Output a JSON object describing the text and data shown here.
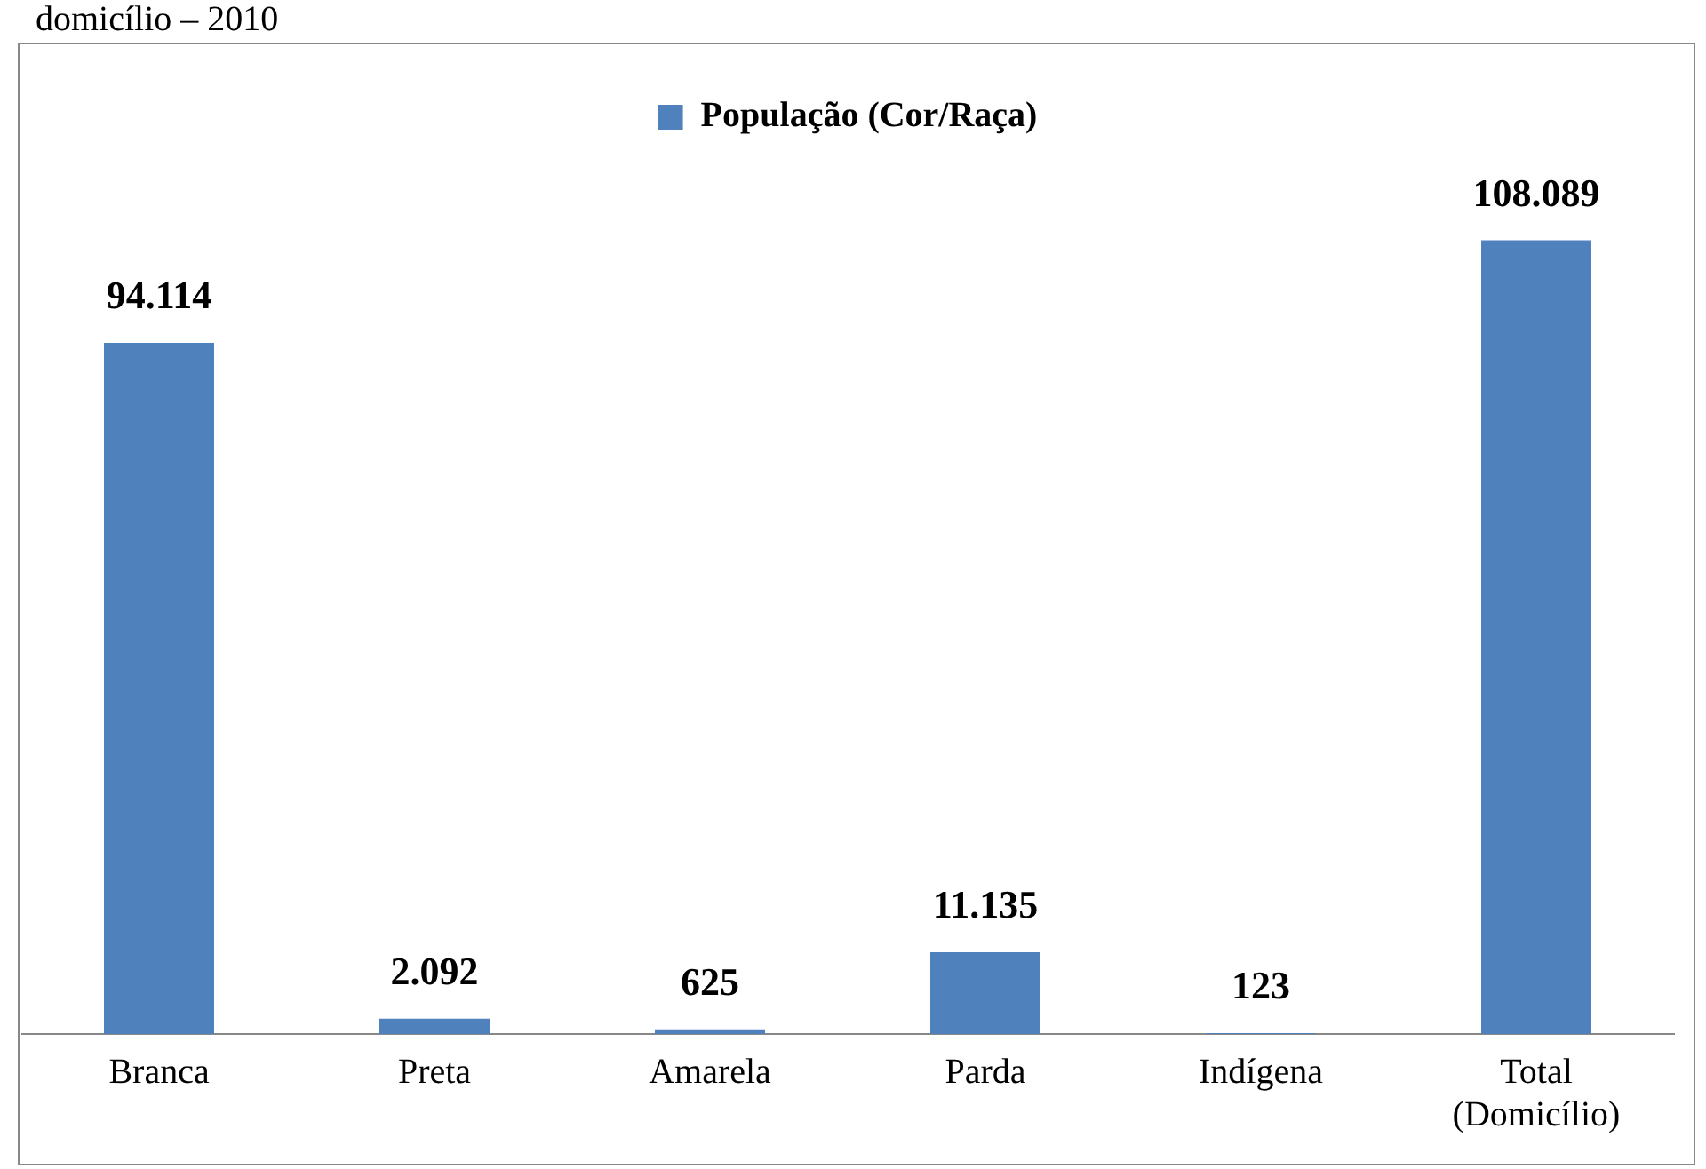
{
  "chart_data": {
    "type": "bar",
    "title": "domicílio – 2010",
    "categories": [
      "Branca",
      "Preta",
      "Amarela",
      "Parda",
      "Indígena",
      "Total (Domicílio)"
    ],
    "series": [
      {
        "name": "População (Cor/Raça)",
        "color": "#4f81bd",
        "values": [
          94114,
          2092,
          625,
          11135,
          123,
          108089
        ],
        "value_labels": [
          "94.114",
          "2.092",
          "625",
          "11.135",
          "123",
          "108.089"
        ]
      }
    ],
    "legend": "top",
    "grid": false
  }
}
